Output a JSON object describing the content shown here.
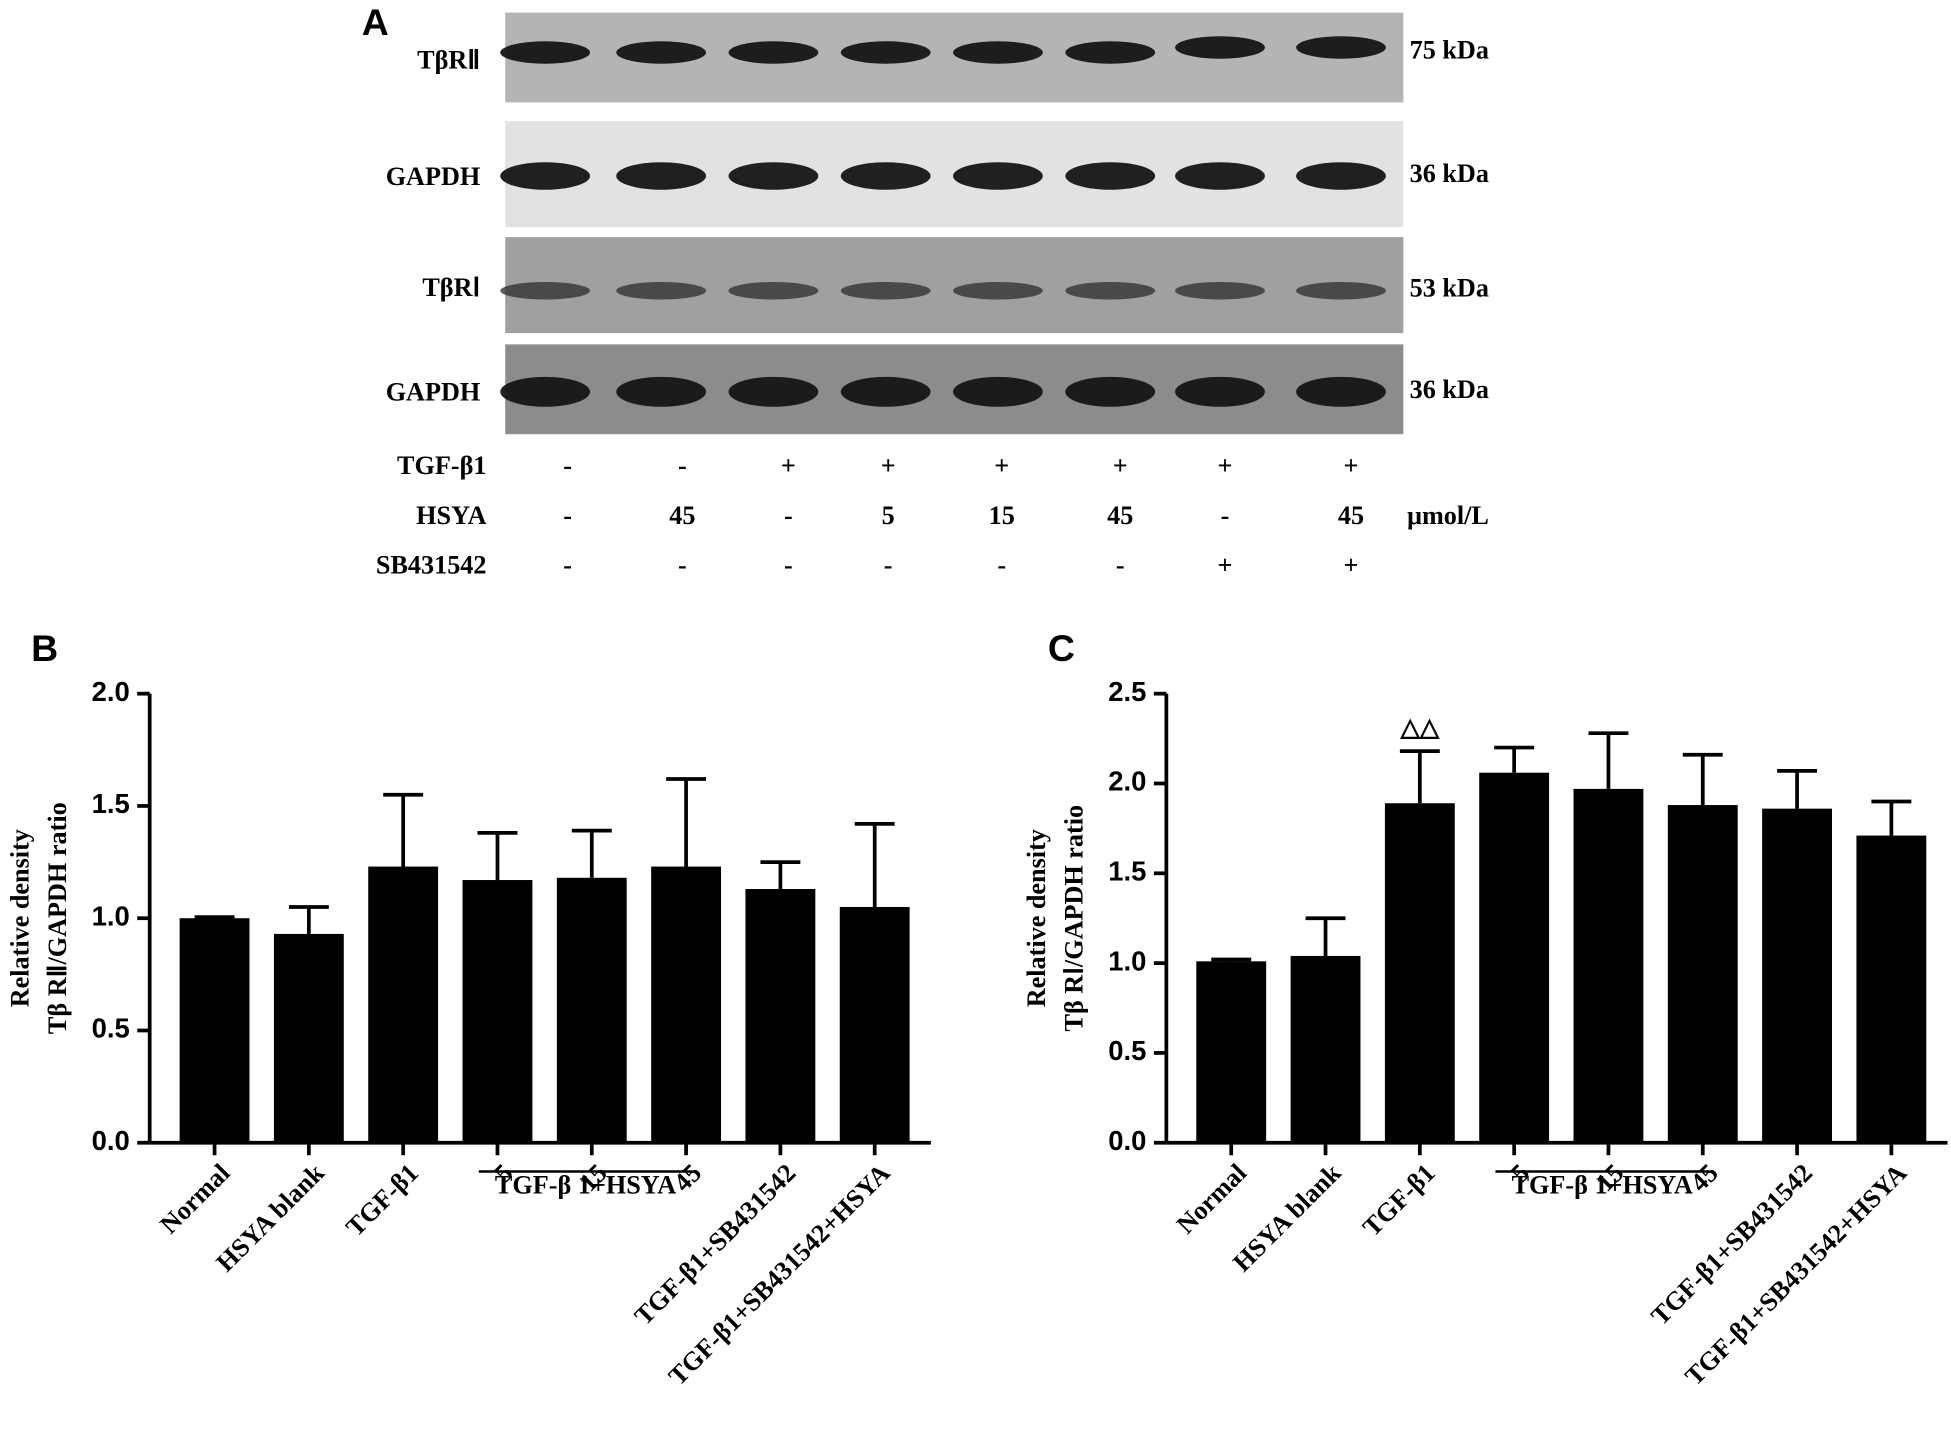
{
  "blot": {
    "panel_label": "A",
    "rows": [
      {
        "label": "TβRⅡ",
        "size": "75 kDa"
      },
      {
        "label": "GAPDH",
        "size": "36 kDa"
      },
      {
        "label": "TβRⅠ",
        "size": "53 kDa"
      },
      {
        "label": "GAPDH",
        "size": "36 kDa"
      }
    ],
    "treatments": [
      {
        "label": "TGF-β1",
        "lanes": [
          "-",
          "-",
          "+",
          "+",
          "+",
          "+",
          "+",
          "+"
        ]
      },
      {
        "label": "HSYA",
        "lanes": [
          "-",
          "45",
          "-",
          "5",
          "15",
          "45",
          "-",
          "45"
        ],
        "unit": "μmol/L"
      },
      {
        "label": "SB431542",
        "lanes": [
          "-",
          "-",
          "-",
          "-",
          "-",
          "-",
          "+",
          "+"
        ]
      }
    ]
  },
  "chart_data": [
    {
      "type": "bar",
      "panel_label": "B",
      "ylabel": [
        "Relative density",
        "Tβ RⅡ/GAPDH ratio"
      ],
      "categories": [
        "Normal",
        "HSYA blank",
        "TGF-β1",
        "5",
        "15",
        "45",
        "TGF-β1+SB431542",
        "TGF-β1+SB431542+HSYA"
      ],
      "group_label": "TGF-β 1+HSYA",
      "values": [
        1.0,
        0.93,
        1.23,
        1.17,
        1.18,
        1.23,
        1.13,
        1.05
      ],
      "errors": [
        0.005,
        0.12,
        0.32,
        0.21,
        0.21,
        0.39,
        0.12,
        0.37
      ],
      "color": "#000000",
      "ylim": [
        0,
        2.0
      ],
      "yticks": [
        {
          "value": 0,
          "label": "0.0"
        },
        0.5,
        {
          "value": 1,
          "label": "1.0"
        },
        1.5,
        {
          "value": 2,
          "label": "2.0"
        }
      ]
    },
    {
      "type": "bar",
      "panel_label": "C",
      "ylabel": [
        "Relative density",
        "Tβ RⅠ/GAPDH ratio"
      ],
      "categories": [
        "Normal",
        "HSYA blank",
        "TGF-β1",
        "5",
        "15",
        "45",
        "TGF-β1+SB431542",
        "TGF-β1+SB431542+HSYA"
      ],
      "group_label": "TGF-β 1+HSYA",
      "annotations": [
        {
          "text": "△△",
          "category": 2
        }
      ],
      "values": [
        1.01,
        1.04,
        1.89,
        2.06,
        1.97,
        1.88,
        1.86,
        1.71
      ],
      "errors": [
        0.01,
        0.21,
        0.29,
        0.14,
        0.31,
        0.28,
        0.21,
        0.19
      ],
      "color": "#000000",
      "ylim": [
        0,
        2.5
      ],
      "yticks": [
        {
          "value": 0,
          "label": "0.0"
        },
        0.5,
        {
          "value": 1,
          "label": "1.0"
        },
        1.5,
        {
          "value": 2,
          "label": "2.0"
        },
        2.5
      ]
    }
  ]
}
